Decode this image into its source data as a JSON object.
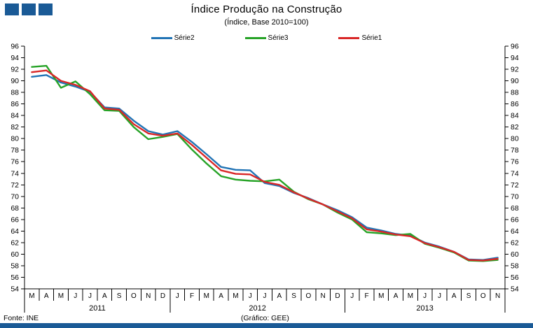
{
  "header": {
    "title": "Índice Produção na Construção",
    "subtitle": "(Índice, Base 2010=100)",
    "square_color": "#1A5A96",
    "square_count": 3
  },
  "footer": {
    "source": "Fonte: INE",
    "credit": "(Gráfico: GEE)",
    "bar_color": "#1A5A96"
  },
  "chart_data": {
    "type": "line",
    "title": "Índice Produção na Construção",
    "subtitle": "(Índice, Base 2010=100)",
    "ylim": [
      54,
      96
    ],
    "ytick_step": 2,
    "grid": false,
    "legend_position": "top",
    "x_months": [
      "M",
      "A",
      "M",
      "J",
      "J",
      "A",
      "S",
      "O",
      "N",
      "D",
      "J",
      "F",
      "M",
      "A",
      "M",
      "J",
      "J",
      "A",
      "S",
      "O",
      "N",
      "D",
      "J",
      "F",
      "M",
      "A",
      "M",
      "J",
      "J",
      "A",
      "S",
      "O",
      "N"
    ],
    "year_groups": [
      {
        "label": "2011",
        "months": 10
      },
      {
        "label": "2012",
        "months": 12
      },
      {
        "label": "2013",
        "months": 11
      }
    ],
    "series": [
      {
        "name": "Série2",
        "color": "#2274B5",
        "values": [
          90.7,
          91.0,
          89.7,
          89.0,
          88.1,
          85.4,
          85.2,
          83.1,
          81.3,
          80.7,
          81.3,
          79.4,
          77.3,
          75.1,
          74.6,
          74.5,
          72.3,
          71.8,
          70.6,
          69.7,
          68.6,
          67.6,
          66.4,
          64.6,
          64.1,
          63.5,
          63.2,
          62.0,
          61.3,
          60.4,
          59.1,
          59.0,
          59.4
        ]
      },
      {
        "name": "Série3",
        "color": "#27A327",
        "values": [
          92.4,
          92.6,
          88.8,
          89.9,
          87.7,
          84.9,
          84.8,
          82.0,
          79.9,
          80.3,
          80.8,
          78.1,
          75.7,
          73.5,
          72.9,
          72.7,
          72.6,
          72.9,
          70.8,
          69.5,
          68.6,
          67.2,
          66.0,
          63.8,
          63.6,
          63.3,
          63.5,
          61.8,
          61.1,
          60.3,
          58.9,
          58.8,
          59.0
        ]
      },
      {
        "name": "Série1",
        "color": "#D92727",
        "values": [
          91.5,
          91.8,
          90.0,
          89.3,
          88.2,
          85.2,
          85.0,
          82.5,
          80.9,
          80.5,
          80.9,
          78.9,
          76.7,
          74.5,
          73.9,
          73.8,
          72.5,
          72.0,
          70.7,
          69.6,
          68.6,
          67.4,
          66.2,
          64.3,
          63.9,
          63.4,
          63.1,
          61.9,
          61.2,
          60.4,
          59.0,
          58.9,
          59.2
        ]
      }
    ]
  }
}
